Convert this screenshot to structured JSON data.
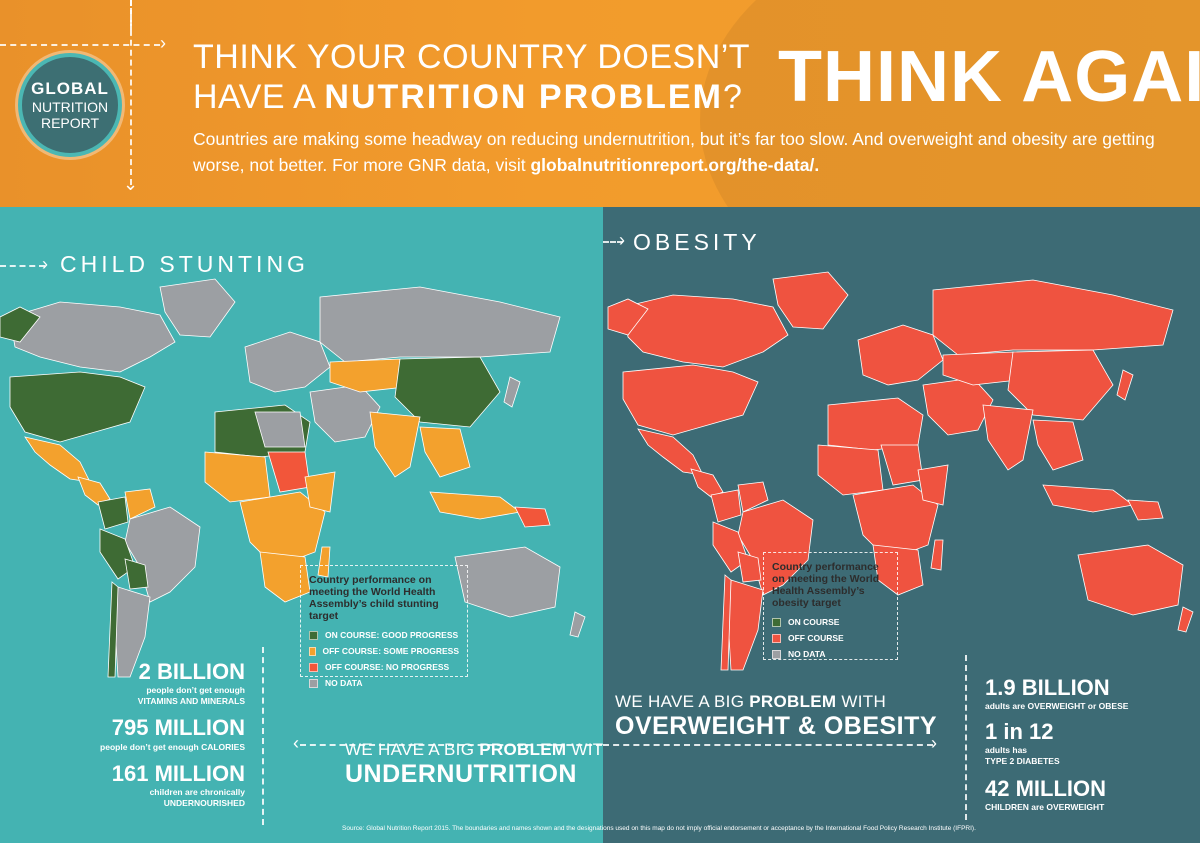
{
  "header": {
    "logo": {
      "line1": "GLOBAL",
      "line2": "NUTRITION",
      "line3": "REPORT"
    },
    "title_line1": "THINK YOUR COUNTRY DOESN’T",
    "title_line2_prefix": "HAVE A ",
    "title_line2_bold": "NUTRITION PROBLEM",
    "title_line2_suffix": "?",
    "headline": "THINK AGAIN.",
    "subtitle": "Countries are making some headway on reducing undernutrition, but it’s far too slow. And overweight and obesity are getting worse, not better. For more GNR data, visit ",
    "subtitle_link": "globalnutritionreport.org/the-data/."
  },
  "colors": {
    "header_orange": "#f29b2c",
    "left_teal": "#44b3b2",
    "right_slate": "#3d6b75",
    "on_course": "#3e6b34",
    "off_course_some": "#f3a12d",
    "off_course_none": "#f2563a",
    "no_data": "#9c9fa3",
    "obesity_off_course": "#ef5340"
  },
  "stunting": {
    "section_title": "CHILD STUNTING",
    "legend": {
      "title": "Country performance on meeting the World Health Assembly’s child stunting target",
      "items": [
        {
          "label": "ON COURSE: GOOD PROGRESS",
          "color": "#3e6b34"
        },
        {
          "label": "OFF COURSE: SOME PROGRESS",
          "color": "#f3a12d"
        },
        {
          "label": "OFF COURSE: NO PROGRESS",
          "color": "#f2563a"
        },
        {
          "label": "NO DATA",
          "color": "#9c9fa3"
        }
      ]
    },
    "stats": [
      {
        "big": "2 BILLION",
        "small1": "people don’t get enough",
        "small2": "VITAMINS AND MINERALS"
      },
      {
        "big": "795 MILLION",
        "small1": "people don’t get enough CALORIES",
        "small2": ""
      },
      {
        "big": "161 MILLION",
        "small1": "children are chronically",
        "small2": "UNDERNOURISHED"
      }
    ],
    "problem_line1_prefix": "WE HAVE A BIG ",
    "problem_line1_bold": "PROBLEM",
    "problem_line1_suffix": " WITH",
    "problem_line2": "UNDERNUTRITION"
  },
  "obesity": {
    "section_title": "OBESITY",
    "legend": {
      "title": "Country performance on meeting the World Health Assembly’s obesity target",
      "items": [
        {
          "label": "ON COURSE",
          "color": "#3e6b34"
        },
        {
          "label": "OFF COURSE",
          "color": "#ef5340"
        },
        {
          "label": "NO DATA",
          "color": "#9c9fa3"
        }
      ]
    },
    "stats": [
      {
        "big": "1.9 BILLION",
        "small1": "adults are OVERWEIGHT or OBESE",
        "small2": ""
      },
      {
        "big": "1 in 12",
        "small1": "adults has",
        "small2": "TYPE 2 DIABETES"
      },
      {
        "big": "42 MILLION",
        "small1": "CHILDREN are OVERWEIGHT",
        "small2": ""
      }
    ],
    "problem_line1_prefix": "WE HAVE A BIG ",
    "problem_line1_bold": "PROBLEM",
    "problem_line1_suffix": " WITH",
    "problem_line2": "OVERWEIGHT & OBESITY"
  },
  "source": "Source: Global Nutrition Report 2015. The boundaries and names shown and the designations used on this map do not imply official endorsement or acceptance by the International Food Policy Research Institute (IFPRI)."
}
